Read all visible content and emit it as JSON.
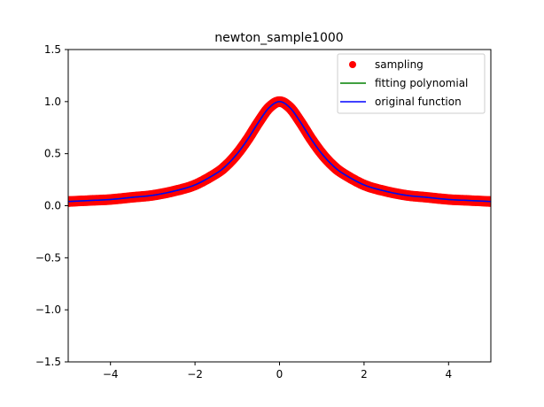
{
  "chart_data": {
    "type": "line",
    "title": "newton_sample1000",
    "xlabel": "",
    "ylabel": "",
    "xlim": [
      -5,
      5
    ],
    "ylim": [
      -1.5,
      1.5
    ],
    "x_ticks": [
      -4,
      -2,
      0,
      2,
      4
    ],
    "x_tick_labels": [
      "−4",
      "−2",
      "0",
      "2",
      "4"
    ],
    "y_ticks": [
      -1.5,
      -1.0,
      -0.5,
      0.0,
      0.5,
      1.0,
      1.5
    ],
    "y_tick_labels": [
      "−1.5",
      "−1.0",
      "−0.5",
      "0.0",
      "0.5",
      "1.0",
      "1.5"
    ],
    "grid": false,
    "legend_position": "top-right",
    "series": [
      {
        "name": "sampling",
        "kind": "scatter",
        "color": "#ff0000",
        "x": [
          -5.0,
          -4.5,
          -4.0,
          -3.5,
          -3.0,
          -2.5,
          -2.0,
          -1.5,
          -1.25,
          -1.0,
          -0.75,
          -0.5,
          -0.25,
          0.0,
          0.25,
          0.5,
          0.75,
          1.0,
          1.25,
          1.5,
          2.0,
          2.5,
          3.0,
          3.5,
          4.0,
          4.5,
          5.0
        ],
        "y": [
          0.04,
          0.05,
          0.06,
          0.08,
          0.1,
          0.14,
          0.2,
          0.31,
          0.39,
          0.5,
          0.64,
          0.8,
          0.94,
          1.0,
          0.94,
          0.8,
          0.64,
          0.5,
          0.39,
          0.31,
          0.2,
          0.14,
          0.1,
          0.08,
          0.06,
          0.05,
          0.04
        ]
      },
      {
        "name": "fitting polynomial",
        "kind": "line",
        "color": "#008000",
        "x": [
          -5.0,
          -4.5,
          -4.0,
          -3.5,
          -3.0,
          -2.5,
          -2.0,
          -1.5,
          -1.25,
          -1.0,
          -0.75,
          -0.5,
          -0.25,
          0.0,
          0.25,
          0.5,
          0.75,
          1.0,
          1.25,
          1.5,
          2.0,
          2.5,
          3.0,
          3.5,
          4.0,
          4.5,
          5.0
        ],
        "y": [
          0.04,
          0.05,
          0.06,
          0.08,
          0.1,
          0.14,
          0.2,
          0.31,
          0.39,
          0.5,
          0.64,
          0.8,
          0.94,
          1.0,
          0.94,
          0.8,
          0.64,
          0.5,
          0.39,
          0.31,
          0.2,
          0.14,
          0.1,
          0.08,
          0.06,
          0.05,
          0.04
        ]
      },
      {
        "name": "original function",
        "kind": "line",
        "color": "#0000ff",
        "x": [
          -5.0,
          -4.5,
          -4.0,
          -3.5,
          -3.0,
          -2.5,
          -2.0,
          -1.5,
          -1.25,
          -1.0,
          -0.75,
          -0.5,
          -0.25,
          0.0,
          0.25,
          0.5,
          0.75,
          1.0,
          1.25,
          1.5,
          2.0,
          2.5,
          3.0,
          3.5,
          4.0,
          4.5,
          5.0
        ],
        "y": [
          0.04,
          0.05,
          0.06,
          0.08,
          0.1,
          0.14,
          0.2,
          0.31,
          0.39,
          0.5,
          0.64,
          0.8,
          0.94,
          1.0,
          0.94,
          0.8,
          0.64,
          0.5,
          0.39,
          0.31,
          0.2,
          0.14,
          0.1,
          0.08,
          0.06,
          0.05,
          0.04
        ]
      }
    ]
  }
}
